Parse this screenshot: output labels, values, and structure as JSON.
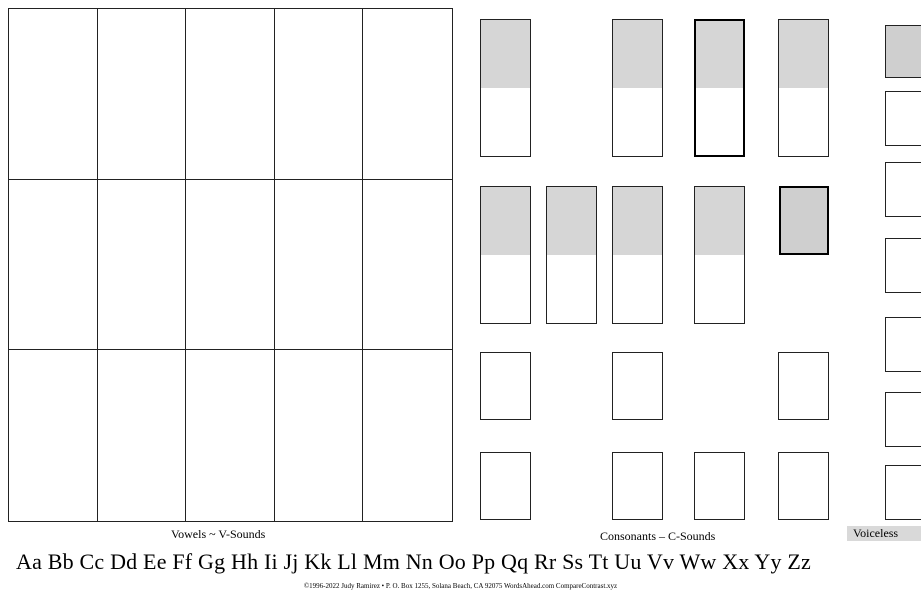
{
  "labels": {
    "vowels": "Vowels ~ V-Sounds",
    "consonants": "Consonants – C-Sounds",
    "voiceless": "Voiceless"
  },
  "alphabet": "Aa Bb Cc Dd Ee Ff Gg Hh Ii Jj Kk Ll Mm Nn Oo Pp Qq Rr Ss Tt Uu Vv Ww Xx Yy Zz",
  "copyright": "©1996-2022 Judy Ramirez • P. O. Box 1255, Solana Beach, CA 92075 WordsAhead.com CompareContrast.xyz",
  "colors": {
    "shade": "#d6d6d6",
    "voiceless_bg": "#d9d9d9"
  }
}
